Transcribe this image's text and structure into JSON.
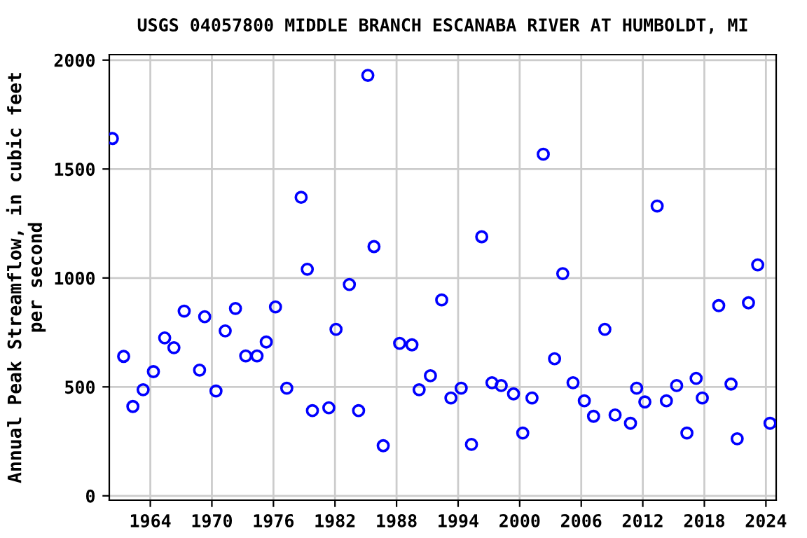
{
  "chart_data": {
    "type": "scatter",
    "title": "USGS 04057800 MIDDLE BRANCH ESCANABA RIVER AT HUMBOLDT, MI",
    "ylabel": "Annual Peak Streamflow, in cubic feet\nper second",
    "x": [
      1960.3,
      1961.4,
      1962.3,
      1963.3,
      1964.3,
      1965.4,
      1966.3,
      1967.3,
      1968.8,
      1969.3,
      1970.4,
      1971.3,
      1972.3,
      1973.3,
      1974.4,
      1975.3,
      1976.2,
      1977.3,
      1978.7,
      1979.3,
      1979.8,
      1981.4,
      1982.1,
      1983.4,
      1984.3,
      1985.2,
      1985.8,
      1986.7,
      1988.3,
      1989.5,
      1990.2,
      1991.3,
      1992.4,
      1993.3,
      1994.3,
      1995.3,
      1996.3,
      1997.3,
      1998.2,
      1999.4,
      2000.3,
      2001.2,
      2002.3,
      2003.4,
      2004.2,
      2005.2,
      2006.3,
      2007.2,
      2008.3,
      2009.3,
      2010.8,
      2011.4,
      2012.2,
      2013.4,
      2014.3,
      2015.3,
      2016.3,
      2017.2,
      2017.8,
      2019.4,
      2020.6,
      2021.2,
      2022.3,
      2023.2,
      2024.4
    ],
    "series": [
      {
        "color": "#0000ff",
        "values": [
          1640,
          640,
          410,
          487,
          570,
          725,
          680,
          848,
          577,
          822,
          481,
          757,
          860,
          642,
          642,
          706,
          867,
          494,
          1370,
          1040,
          391,
          404,
          764,
          970,
          391,
          1930,
          1144,
          230,
          700,
          693,
          487,
          551,
          899,
          449,
          494,
          236,
          1189,
          519,
          506,
          468,
          288,
          449,
          1568,
          629,
          1020,
          519,
          436,
          365,
          764,
          371,
          333,
          494,
          431,
          1330,
          436,
          506,
          288,
          539,
          449,
          873,
          513,
          262,
          886,
          1060,
          333
        ]
      }
    ],
    "marker": "circle",
    "grid": true,
    "xlim": [
      1960,
      2025
    ],
    "xticks": [
      1964,
      1970,
      1976,
      1982,
      1988,
      1994,
      2000,
      2006,
      2012,
      2018,
      2024
    ],
    "ylim": [
      -20,
      2025
    ],
    "yticks": [
      0,
      500,
      1000,
      1500,
      2000
    ]
  }
}
